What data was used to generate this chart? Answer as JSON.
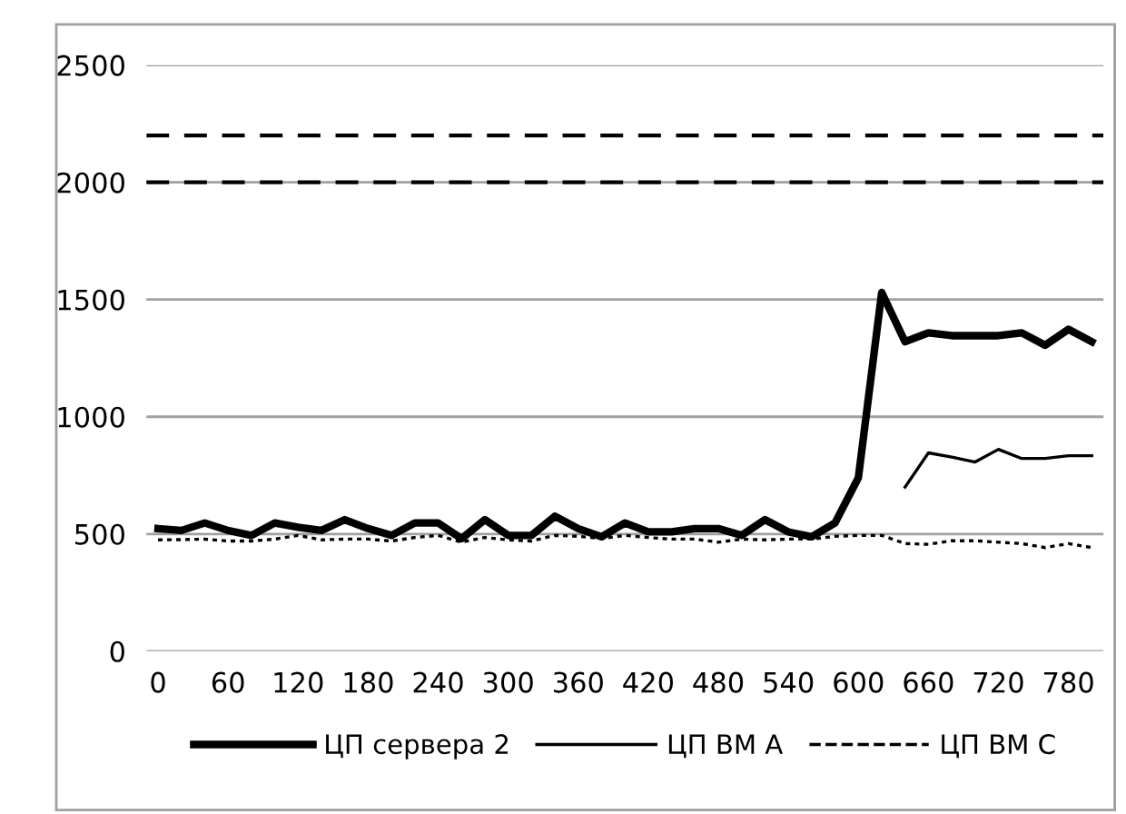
{
  "chart_data": {
    "type": "line",
    "categories": [
      "0",
      null,
      null,
      "60",
      null,
      null,
      "120",
      null,
      null,
      "180",
      null,
      null,
      "240",
      null,
      null,
      "300",
      null,
      null,
      "360",
      null,
      null,
      "420",
      null,
      null,
      "480",
      null,
      null,
      "540",
      null,
      null,
      "600",
      null,
      null,
      "660",
      null,
      null,
      "720",
      null,
      null,
      "780",
      null
    ],
    "series": [
      {
        "name": "ЦП сервера 2",
        "color": "#000000",
        "line_style": "solid",
        "values": [
          523,
          515,
          547,
          515,
          494,
          547,
          529,
          515,
          561,
          523,
          494,
          547,
          547,
          480,
          561,
          494,
          494,
          576,
          523,
          488,
          547,
          509,
          509,
          523,
          523,
          494,
          561,
          509,
          488,
          547,
          740,
          1530,
          1320,
          1358,
          1346,
          1346,
          1346,
          1358,
          1305,
          1373,
          1320
        ]
      },
      {
        "name": "ЦП ВМ А",
        "color": "#000000",
        "line_style": "solid",
        "values": [
          null,
          null,
          null,
          null,
          null,
          null,
          null,
          null,
          null,
          null,
          null,
          null,
          null,
          null,
          null,
          null,
          null,
          null,
          null,
          null,
          null,
          null,
          null,
          null,
          null,
          null,
          null,
          null,
          null,
          null,
          null,
          null,
          700,
          846,
          828,
          807,
          861,
          822,
          822,
          834,
          834
        ]
      },
      {
        "name": "ЦП ВМ С",
        "color": "#000000",
        "line_style": "dotted",
        "values": [
          475,
          476,
          478,
          470,
          470,
          478,
          494,
          475,
          478,
          478,
          470,
          485,
          494,
          465,
          485,
          475,
          470,
          494,
          490,
          480,
          494,
          485,
          478,
          478,
          465,
          478,
          475,
          478,
          478,
          490,
          494,
          494,
          459,
          456,
          471,
          471,
          465,
          459,
          442,
          459,
          442
        ]
      }
    ],
    "ylim": [
      0,
      2500
    ],
    "yticks": [
      0,
      500,
      1000,
      1500,
      2000,
      2500
    ],
    "ref_lines": [
      {
        "axis": "y",
        "value": 2200,
        "color": "#000000",
        "line_style": "dashed"
      },
      {
        "axis": "y",
        "value": 2000,
        "color": "#000000",
        "line_style": "dashed"
      }
    ],
    "grid": "y",
    "legend": "bottom",
    "marker": "none"
  }
}
